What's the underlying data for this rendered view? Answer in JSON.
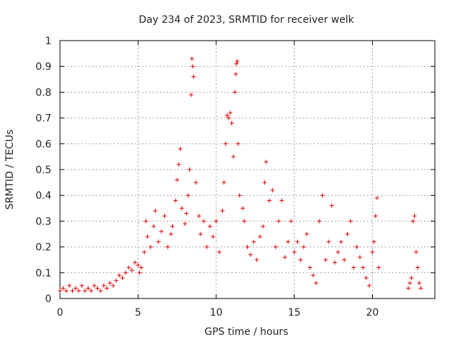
{
  "chart_data": {
    "type": "scatter",
    "title": "Day 234 of 2023, SRMTID for receiver welk",
    "xlabel": "GPS time / hours",
    "ylabel": "SRMTID / TECUs",
    "xlim": [
      0,
      24
    ],
    "ylim": [
      0,
      1
    ],
    "xticks": [
      "0",
      "5",
      "10",
      "15",
      "20"
    ],
    "xtick_values": [
      0,
      5,
      10,
      15,
      20
    ],
    "yticks": [
      "0",
      "0.1",
      "0.2",
      "0.3",
      "0.4",
      "0.5",
      "0.6",
      "0.7",
      "0.8",
      "0.9",
      "1"
    ],
    "ytick_values": [
      0,
      0.1,
      0.2,
      0.3,
      0.4,
      0.5,
      0.6,
      0.7,
      0.8,
      0.9,
      1
    ],
    "grid": true,
    "marker": "+",
    "series": [
      {
        "name": "SRMTID",
        "color": "#e00000",
        "points": [
          [
            0.0,
            0.03
          ],
          [
            0.2,
            0.04
          ],
          [
            0.4,
            0.03
          ],
          [
            0.6,
            0.05
          ],
          [
            0.8,
            0.03
          ],
          [
            1.0,
            0.04
          ],
          [
            1.2,
            0.03
          ],
          [
            1.4,
            0.05
          ],
          [
            1.6,
            0.03
          ],
          [
            1.8,
            0.04
          ],
          [
            2.0,
            0.03
          ],
          [
            2.2,
            0.05
          ],
          [
            2.4,
            0.04
          ],
          [
            2.6,
            0.03
          ],
          [
            2.8,
            0.05
          ],
          [
            3.0,
            0.04
          ],
          [
            3.2,
            0.06
          ],
          [
            3.4,
            0.05
          ],
          [
            3.6,
            0.07
          ],
          [
            3.8,
            0.09
          ],
          [
            4.0,
            0.08
          ],
          [
            4.2,
            0.1
          ],
          [
            4.4,
            0.12
          ],
          [
            4.6,
            0.11
          ],
          [
            4.8,
            0.14
          ],
          [
            5.0,
            0.13
          ],
          [
            5.1,
            0.1
          ],
          [
            5.2,
            0.12
          ],
          [
            5.4,
            0.18
          ],
          [
            5.5,
            0.3
          ],
          [
            5.6,
            0.24
          ],
          [
            5.8,
            0.2
          ],
          [
            6.0,
            0.28
          ],
          [
            6.1,
            0.34
          ],
          [
            6.3,
            0.22
          ],
          [
            6.5,
            0.26
          ],
          [
            6.7,
            0.32
          ],
          [
            6.9,
            0.2
          ],
          [
            7.1,
            0.25
          ],
          [
            7.2,
            0.28
          ],
          [
            7.4,
            0.38
          ],
          [
            7.5,
            0.46
          ],
          [
            7.6,
            0.52
          ],
          [
            7.7,
            0.58
          ],
          [
            7.8,
            0.35
          ],
          [
            8.0,
            0.29
          ],
          [
            8.1,
            0.33
          ],
          [
            8.2,
            0.4
          ],
          [
            8.3,
            0.5
          ],
          [
            8.4,
            0.79
          ],
          [
            8.45,
            0.93
          ],
          [
            8.5,
            0.9
          ],
          [
            8.55,
            0.86
          ],
          [
            8.7,
            0.45
          ],
          [
            8.9,
            0.32
          ],
          [
            9.0,
            0.25
          ],
          [
            9.2,
            0.3
          ],
          [
            9.4,
            0.2
          ],
          [
            9.6,
            0.28
          ],
          [
            9.8,
            0.24
          ],
          [
            10.0,
            0.3
          ],
          [
            10.2,
            0.18
          ],
          [
            10.4,
            0.34
          ],
          [
            10.5,
            0.45
          ],
          [
            10.6,
            0.6
          ],
          [
            10.7,
            0.71
          ],
          [
            10.8,
            0.7
          ],
          [
            10.9,
            0.72
          ],
          [
            11.0,
            0.68
          ],
          [
            11.1,
            0.55
          ],
          [
            11.2,
            0.8
          ],
          [
            11.25,
            0.87
          ],
          [
            11.3,
            0.91
          ],
          [
            11.35,
            0.92
          ],
          [
            11.4,
            0.6
          ],
          [
            11.5,
            0.4
          ],
          [
            11.7,
            0.35
          ],
          [
            11.8,
            0.3
          ],
          [
            12.0,
            0.2
          ],
          [
            12.2,
            0.17
          ],
          [
            12.4,
            0.22
          ],
          [
            12.6,
            0.15
          ],
          [
            12.8,
            0.24
          ],
          [
            13.0,
            0.28
          ],
          [
            13.1,
            0.45
          ],
          [
            13.2,
            0.53
          ],
          [
            13.4,
            0.38
          ],
          [
            13.6,
            0.42
          ],
          [
            13.8,
            0.2
          ],
          [
            14.0,
            0.3
          ],
          [
            14.2,
            0.38
          ],
          [
            14.4,
            0.16
          ],
          [
            14.6,
            0.22
          ],
          [
            14.8,
            0.3
          ],
          [
            15.0,
            0.18
          ],
          [
            15.2,
            0.22
          ],
          [
            15.4,
            0.15
          ],
          [
            15.6,
            0.2
          ],
          [
            15.8,
            0.25
          ],
          [
            16.0,
            0.12
          ],
          [
            16.2,
            0.09
          ],
          [
            16.4,
            0.06
          ],
          [
            16.6,
            0.3
          ],
          [
            16.8,
            0.4
          ],
          [
            17.0,
            0.15
          ],
          [
            17.2,
            0.22
          ],
          [
            17.4,
            0.36
          ],
          [
            17.6,
            0.14
          ],
          [
            17.8,
            0.18
          ],
          [
            18.0,
            0.22
          ],
          [
            18.2,
            0.15
          ],
          [
            18.4,
            0.25
          ],
          [
            18.6,
            0.3
          ],
          [
            18.8,
            0.12
          ],
          [
            19.0,
            0.2
          ],
          [
            19.2,
            0.16
          ],
          [
            19.4,
            0.12
          ],
          [
            19.6,
            0.08
          ],
          [
            19.8,
            0.05
          ],
          [
            20.0,
            0.18
          ],
          [
            20.1,
            0.22
          ],
          [
            20.2,
            0.32
          ],
          [
            20.3,
            0.39
          ],
          [
            20.4,
            0.12
          ],
          [
            22.3,
            0.04
          ],
          [
            22.4,
            0.06
          ],
          [
            22.5,
            0.08
          ],
          [
            22.6,
            0.3
          ],
          [
            22.7,
            0.32
          ],
          [
            22.8,
            0.18
          ],
          [
            22.9,
            0.12
          ],
          [
            23.0,
            0.06
          ],
          [
            23.1,
            0.04
          ]
        ]
      }
    ]
  }
}
